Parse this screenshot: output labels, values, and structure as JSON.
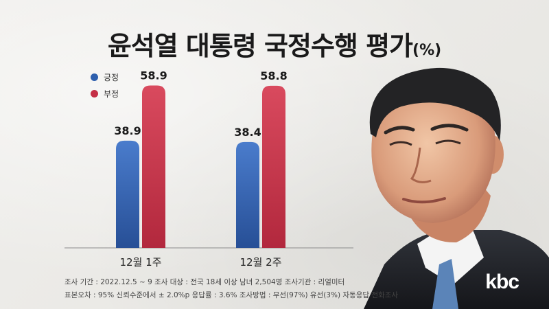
{
  "header": {
    "title": "윤석열 대통령 국정수행 평가",
    "unit": "(%)"
  },
  "chart_data": {
    "type": "bar",
    "title": "윤석열 대통령 국정수행 평가",
    "categories": [
      "12월 1주",
      "12월 2주"
    ],
    "series": [
      {
        "name": "긍정",
        "values": [
          38.9,
          38.4
        ],
        "color": "#2e5fae"
      },
      {
        "name": "부정",
        "values": [
          58.9,
          58.8
        ],
        "color": "#c42f45"
      }
    ],
    "ylim": [
      0,
      68
    ],
    "grid": false,
    "legend": "top-left"
  },
  "notes": {
    "line1": "조사 기간 : 2022.12.5 ~ 9  조사 대상 : 전국 18세 이상 남녀 2,504명  조사기관 : 리얼미터",
    "line2": "표본오차 : 95% 신뢰수준에서 ± 2.0%p  응답률 : 3.6%  조사방법 : 무선(97%) 유선(3%) 자동응답 전화조사"
  },
  "brand": {
    "logo_text": "kbc"
  }
}
